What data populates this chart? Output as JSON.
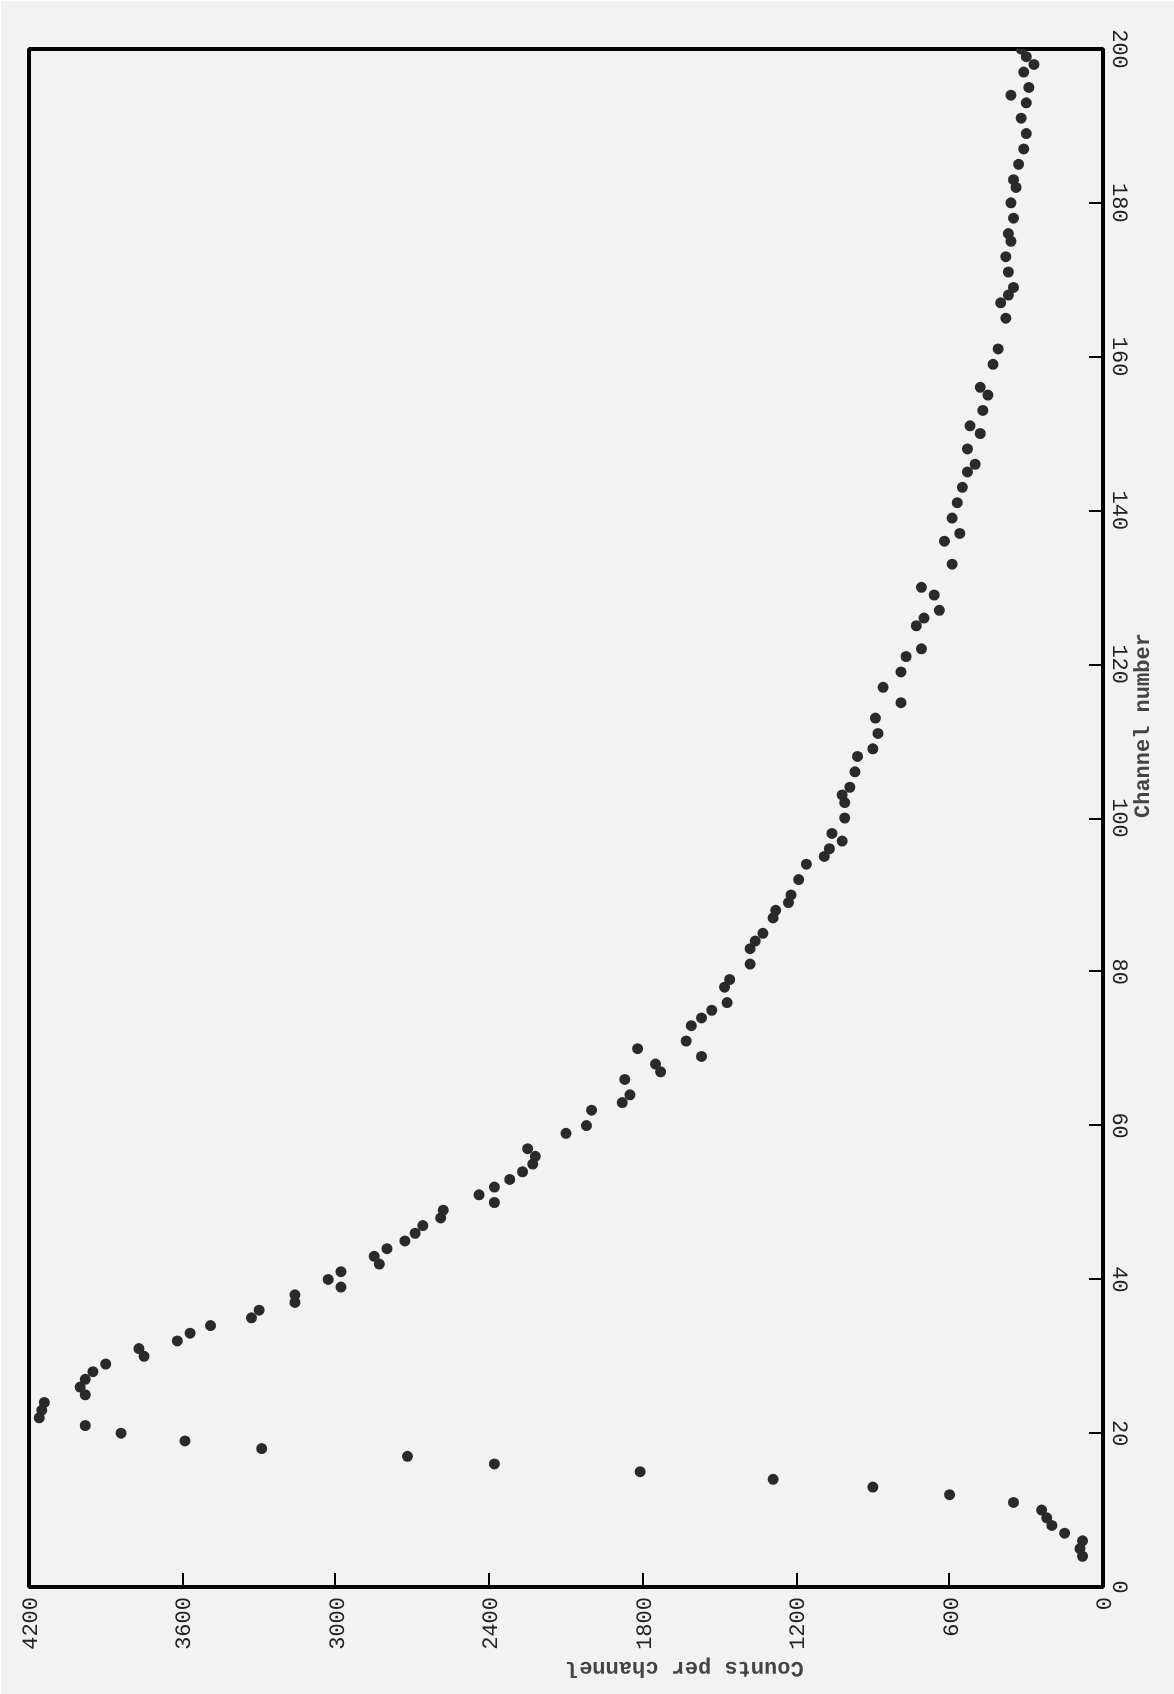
{
  "chart_data": {
    "type": "scatter",
    "xlabel": "Counts per channel",
    "ylabel": "Channel number",
    "x": [
      80,
      90,
      80,
      150,
      200,
      220,
      240,
      350,
      600,
      900,
      1290,
      1810,
      2380,
      2720,
      3290,
      3590,
      3840,
      3980,
      4160,
      4150,
      4140,
      3980,
      4000,
      3980,
      3950,
      3900,
      3750,
      3770,
      3620,
      3570,
      3490,
      3330,
      3300,
      3160,
      3160,
      2980,
      3030,
      2980,
      2830,
      2850,
      2800,
      2730,
      2690,
      2660,
      2590,
      2580,
      2380,
      2440,
      2380,
      2320,
      2270,
      2230,
      2220,
      2250,
      2100,
      2020,
      2000,
      1880,
      1850,
      1870,
      1730,
      1750,
      1570,
      1820,
      1630,
      1610,
      1570,
      1530,
      1470,
      1480,
      1460,
      1380,
      1380,
      1360,
      1330,
      1290,
      1280,
      1230,
      1220,
      1190,
      1160,
      1090,
      1070,
      1020,
      1060,
      1010,
      1010,
      1020,
      990,
      970,
      960,
      900,
      880,
      890,
      790,
      860,
      790,
      770,
      710,
      730,
      700,
      640,
      660,
      710,
      590,
      620,
      560,
      590,
      570,
      550,
      530,
      500,
      530,
      480,
      520,
      470,
      450,
      480,
      430,
      410,
      380,
      400,
      370,
      350,
      370,
      380,
      360,
      370,
      350,
      360,
      340,
      350,
      330,
      310,
      300,
      320,
      300,
      360,
      290,
      310,
      270,
      300,
      320
    ],
    "series": [
      {
        "color": "#2a2a2a",
        "values": [
          4,
          5,
          6,
          7,
          8,
          9,
          10,
          11,
          12,
          13,
          14,
          15,
          16,
          17,
          18,
          19,
          20,
          21,
          22,
          23,
          24,
          25,
          26,
          27,
          28,
          29,
          30,
          31,
          32,
          33,
          34,
          35,
          36,
          37,
          38,
          39,
          40,
          41,
          42,
          43,
          44,
          45,
          46,
          47,
          48,
          49,
          50,
          51,
          52,
          53,
          54,
          55,
          56,
          57,
          59,
          60,
          62,
          63,
          64,
          66,
          67,
          68,
          69,
          70,
          71,
          73,
          74,
          75,
          76,
          78,
          79,
          81,
          83,
          84,
          85,
          87,
          88,
          89,
          90,
          92,
          94,
          95,
          96,
          97,
          98,
          100,
          102,
          103,
          104,
          106,
          108,
          109,
          111,
          113,
          115,
          117,
          119,
          121,
          122,
          125,
          126,
          127,
          129,
          130,
          133,
          136,
          137,
          139,
          141,
          143,
          145,
          146,
          148,
          150,
          151,
          153,
          155,
          156,
          159,
          161,
          165,
          167,
          168,
          169,
          171,
          173,
          175,
          176,
          178,
          180,
          182,
          183,
          185,
          187,
          189,
          191,
          193,
          194,
          195,
          197,
          198,
          199,
          200
        ]
      }
    ],
    "xlim": [
      4200,
      0
    ],
    "xticks": [
      0,
      600,
      1200,
      1800,
      2400,
      3000,
      3600,
      4200
    ],
    "ylim": [
      0,
      200
    ],
    "yticks": [
      0,
      20,
      40,
      60,
      80,
      100,
      120,
      140,
      160,
      180,
      200
    ],
    "grid": false,
    "marker": "circle"
  }
}
